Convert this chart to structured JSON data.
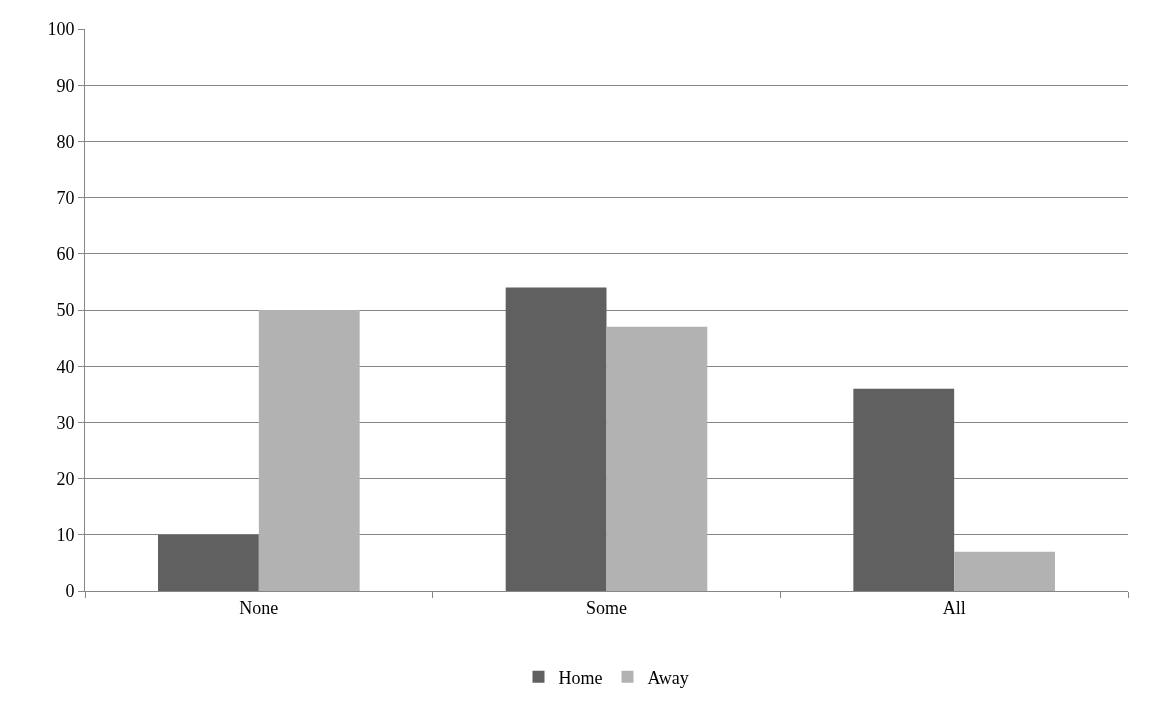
{
  "chart_data": {
    "type": "bar",
    "categories": [
      "None",
      "Some",
      "All"
    ],
    "series": [
      {
        "name": "Home",
        "color": "#606060",
        "values": [
          10,
          54,
          36
        ]
      },
      {
        "name": "Away",
        "color": "#b2b2b2",
        "values": [
          50,
          47,
          7
        ]
      }
    ],
    "ylim": [
      0,
      100
    ],
    "yticks": [
      0,
      10,
      20,
      30,
      40,
      50,
      60,
      70,
      80,
      90,
      100
    ],
    "grid": "y",
    "legend": "bottom"
  }
}
